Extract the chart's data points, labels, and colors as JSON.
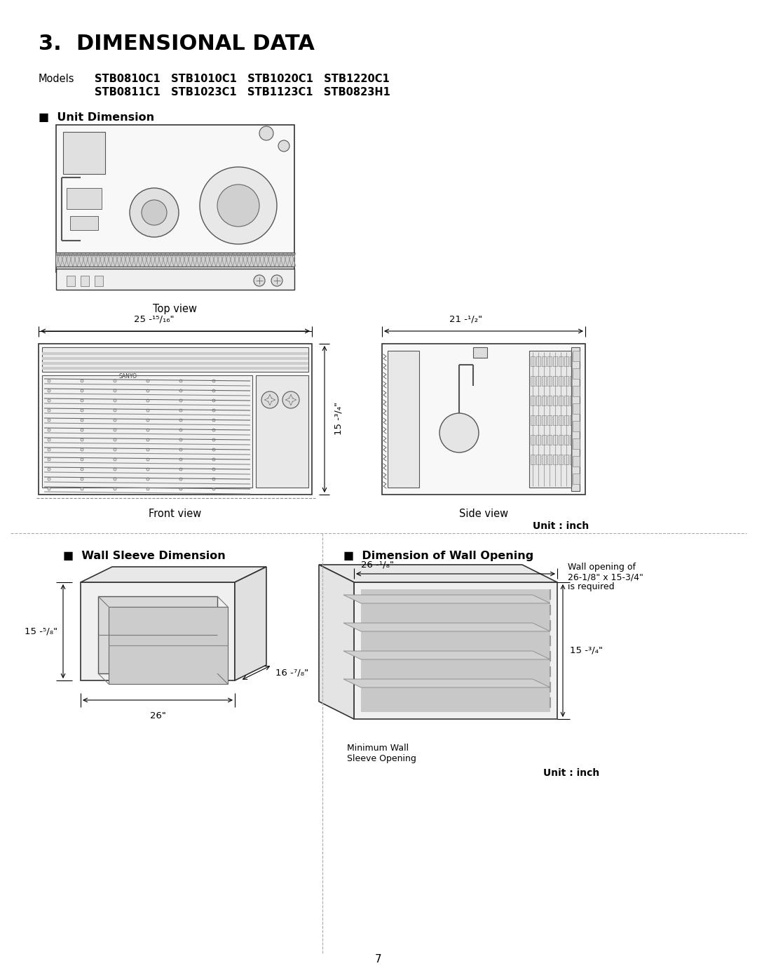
{
  "title": "3.  DIMENSIONAL DATA",
  "title_fontsize": 22,
  "title_bold": true,
  "models_label": "Models",
  "models_row1": "STB0810C1   STB1010C1   STB1020C1   STB1220C1",
  "models_row2": "STB0811C1   STB1023C1   STB1123C1   STB0823H1",
  "section1_title": "■  Unit Dimension",
  "top_view_label": "Top view",
  "front_view_label": "Front view",
  "side_view_label": "Side view",
  "unit_inch_label": "Unit : inch",
  "dim_width_front": "25 -¹⁵/₁₆\"",
  "dim_width_side": "21 -¹/₂\"",
  "dim_height": "15 -³/₄\"",
  "section2_title": "■  Wall Sleeve Dimension",
  "section3_title": "■  Dimension of Wall Opening",
  "sleeve_height": "15 -⁵/₈\"",
  "sleeve_depth": "16 -⁷/₈\"",
  "sleeve_width": "26\"",
  "wall_opening_width": "26 -¹/₈\"",
  "wall_opening_height": "15 -³/₄\"",
  "wall_opening_note1": "Wall opening of",
  "wall_opening_note2": "26-1/8\" x 15-3/4\"",
  "wall_opening_note3": "is required",
  "min_wall_label1": "Minimum Wall",
  "min_wall_label2": "Sleeve Opening",
  "unit_inch_label2": "Unit : inch",
  "page_number": "7",
  "bg_color": "#ffffff",
  "text_color": "#000000",
  "line_color": "#000000",
  "dashed_line_color": "#888888"
}
